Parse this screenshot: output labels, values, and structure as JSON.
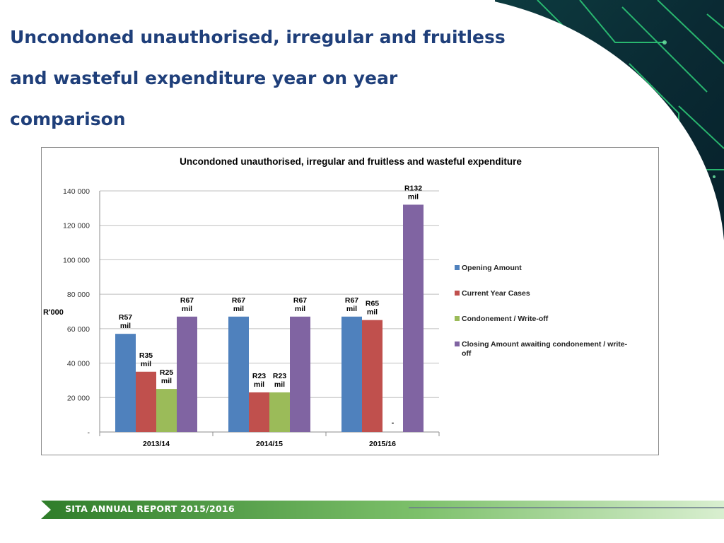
{
  "slide": {
    "title_lines": [
      "Uncondoned unauthorised, irregular and fruitless",
      "and wasteful expenditure year on year",
      "comparison"
    ],
    "footer": "SITA ANNUAL REPORT 2015/2016"
  },
  "colors": {
    "title": "#1f3f7a",
    "opening": "#4f81bd",
    "current": "#c0504d",
    "condonement": "#9bbb59",
    "closing": "#8064a2",
    "footer_green": "#4a9a3a"
  },
  "chart_data": {
    "type": "bar",
    "title": "Uncondoned unauthorised, irregular and fruitless and wasteful expenditure",
    "ylabel": "R'000",
    "xlabel": "",
    "ylim": [
      0,
      140000
    ],
    "yticks": [
      {
        "value": 0,
        "label": "-"
      },
      {
        "value": 20000,
        "label": "20 000"
      },
      {
        "value": 40000,
        "label": "40 000"
      },
      {
        "value": 60000,
        "label": "60 000"
      },
      {
        "value": 80000,
        "label": "80 000"
      },
      {
        "value": 100000,
        "label": "100 000"
      },
      {
        "value": 120000,
        "label": "120 000"
      },
      {
        "value": 140000,
        "label": "140 000"
      }
    ],
    "grid": true,
    "legend_position": "right",
    "categories": [
      "2013/14",
      "2014/15",
      "2015/16"
    ],
    "series": [
      {
        "name": "Opening Amount",
        "color": "#4f81bd",
        "values": [
          57000,
          67000,
          67000
        ],
        "labels": [
          "R57\nmil",
          "R67\nmil",
          "R67\nmil"
        ]
      },
      {
        "name": "Current Year Cases",
        "color": "#c0504d",
        "values": [
          35000,
          23000,
          65000
        ],
        "labels": [
          "R35\nmil",
          "R23\nmil",
          "R65\nmil"
        ]
      },
      {
        "name": "Condonement / Write-off",
        "color": "#9bbb59",
        "values": [
          25000,
          23000,
          0
        ],
        "labels": [
          "R25\nmil",
          "R23\nmil",
          "-"
        ]
      },
      {
        "name": "Closing Amount  awaiting condonement / write-off",
        "color": "#8064a2",
        "values": [
          67000,
          67000,
          132000
        ],
        "labels": [
          "R67\nmil",
          "R67\nmil",
          "R132\nmil"
        ]
      }
    ]
  }
}
